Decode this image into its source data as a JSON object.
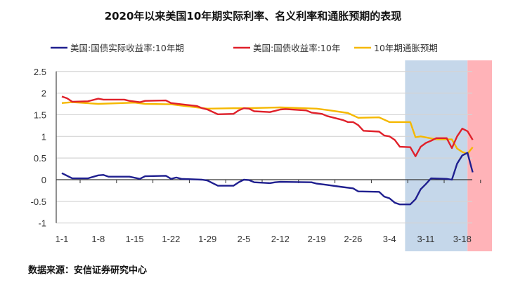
{
  "title": "2020年以来美国10年期实际利率、名义利率和通胀预期的表现",
  "source": "数据来源：安信证券研究中心",
  "chart_data": {
    "type": "line",
    "title": "2020年以来美国10年期实际利率、名义利率和通胀预期的表现",
    "ylim": [
      -1,
      2.5
    ],
    "yticks": [
      -1,
      -0.5,
      0,
      0.5,
      1,
      1.5,
      2,
      2.5
    ],
    "ytick_labels": [
      "-1",
      "-0.5",
      "0",
      "0.5",
      "1",
      "1.5",
      "2",
      "2.5"
    ],
    "xtick_labels": [
      "1-1",
      "1-8",
      "1-15",
      "1-22",
      "1-29",
      "2-5",
      "2-12",
      "2-19",
      "2-26",
      "3-4",
      "3-11",
      "3-18"
    ],
    "grid": "horizontal",
    "legend": "top",
    "shaded_regions": [
      {
        "from": "3-7",
        "to": "3-19",
        "color": "#c5d7ea"
      },
      {
        "from": "3-19",
        "to": "3-24",
        "color": "#ffb3b8"
      }
    ],
    "series": [
      {
        "name": "美国:国债实际收益率:10年期",
        "color": "#1f1f8f",
        "points": [
          [
            "1-1",
            0.15
          ],
          [
            "1-3",
            0.03
          ],
          [
            "1-6",
            0.03
          ],
          [
            "1-8",
            0.1
          ],
          [
            "1-9",
            0.11
          ],
          [
            "1-10",
            0.07
          ],
          [
            "1-14",
            0.07
          ],
          [
            "1-16",
            0.02
          ],
          [
            "1-17",
            0.08
          ],
          [
            "1-21",
            0.09
          ],
          [
            "1-22",
            0.02
          ],
          [
            "1-23",
            0.05
          ],
          [
            "1-24",
            0.02
          ],
          [
            "1-28",
            0.0
          ],
          [
            "1-29",
            -0.02
          ],
          [
            "1-30",
            -0.08
          ],
          [
            "1-31",
            -0.14
          ],
          [
            "2-3",
            -0.14
          ],
          [
            "2-4",
            -0.06
          ],
          [
            "2-5",
            0.0
          ],
          [
            "2-6",
            -0.01
          ],
          [
            "2-7",
            -0.06
          ],
          [
            "2-10",
            -0.08
          ],
          [
            "2-11",
            -0.06
          ],
          [
            "2-12",
            -0.05
          ],
          [
            "2-18",
            -0.06
          ],
          [
            "2-19",
            -0.09
          ],
          [
            "2-21",
            -0.12
          ],
          [
            "2-24",
            -0.17
          ],
          [
            "2-26",
            -0.2
          ],
          [
            "2-27",
            -0.27
          ],
          [
            "3-2",
            -0.28
          ],
          [
            "3-3",
            -0.39
          ],
          [
            "3-4",
            -0.43
          ],
          [
            "3-5",
            -0.53
          ],
          [
            "3-6",
            -0.57
          ],
          [
            "3-8",
            -0.57
          ],
          [
            "3-9",
            -0.45
          ],
          [
            "3-10",
            -0.22
          ],
          [
            "3-11",
            -0.1
          ],
          [
            "3-12",
            0.03
          ],
          [
            "3-15",
            0.02
          ],
          [
            "3-16",
            0.0
          ],
          [
            "3-17",
            0.37
          ],
          [
            "3-18",
            0.56
          ],
          [
            "3-19",
            0.62
          ],
          [
            "3-20",
            0.17
          ]
        ]
      },
      {
        "name": "美国:国债收益率:10年",
        "color": "#e0202a",
        "points": [
          [
            "1-1",
            1.92
          ],
          [
            "1-2",
            1.88
          ],
          [
            "1-3",
            1.8
          ],
          [
            "1-6",
            1.81
          ],
          [
            "1-8",
            1.87
          ],
          [
            "1-9",
            1.85
          ],
          [
            "1-13",
            1.85
          ],
          [
            "1-14",
            1.82
          ],
          [
            "1-16",
            1.79
          ],
          [
            "1-17",
            1.82
          ],
          [
            "1-21",
            1.83
          ],
          [
            "1-22",
            1.77
          ],
          [
            "1-24",
            1.74
          ],
          [
            "1-27",
            1.7
          ],
          [
            "1-28",
            1.65
          ],
          [
            "1-29",
            1.62
          ],
          [
            "1-31",
            1.51
          ],
          [
            "2-3",
            1.52
          ],
          [
            "2-4",
            1.6
          ],
          [
            "2-5",
            1.65
          ],
          [
            "2-6",
            1.64
          ],
          [
            "2-7",
            1.58
          ],
          [
            "2-10",
            1.56
          ],
          [
            "2-11",
            1.59
          ],
          [
            "2-12",
            1.62
          ],
          [
            "2-13",
            1.63
          ],
          [
            "2-17",
            1.6
          ],
          [
            "2-18",
            1.55
          ],
          [
            "2-20",
            1.52
          ],
          [
            "2-21",
            1.47
          ],
          [
            "2-24",
            1.38
          ],
          [
            "2-25",
            1.33
          ],
          [
            "2-26",
            1.33
          ],
          [
            "2-27",
            1.26
          ],
          [
            "2-28",
            1.13
          ],
          [
            "3-2",
            1.11
          ],
          [
            "3-3",
            1.02
          ],
          [
            "3-4",
            1.0
          ],
          [
            "3-5",
            0.92
          ],
          [
            "3-6",
            0.76
          ],
          [
            "3-8",
            0.75
          ],
          [
            "3-9",
            0.54
          ],
          [
            "3-10",
            0.76
          ],
          [
            "3-11",
            0.85
          ],
          [
            "3-12",
            0.9
          ],
          [
            "3-13",
            0.96
          ],
          [
            "3-15",
            0.96
          ],
          [
            "3-16",
            0.73
          ],
          [
            "3-17",
            1.0
          ],
          [
            "3-18",
            1.18
          ],
          [
            "3-19",
            1.12
          ],
          [
            "3-20",
            0.92
          ]
        ]
      },
      {
        "name": "10年期通胀预期",
        "color": "#f5b800",
        "points": [
          [
            "1-1",
            1.77
          ],
          [
            "1-3",
            1.79
          ],
          [
            "1-8",
            1.75
          ],
          [
            "1-15",
            1.78
          ],
          [
            "1-17",
            1.75
          ],
          [
            "1-22",
            1.74
          ],
          [
            "1-27",
            1.67
          ],
          [
            "1-29",
            1.64
          ],
          [
            "2-3",
            1.65
          ],
          [
            "2-5",
            1.65
          ],
          [
            "2-12",
            1.67
          ],
          [
            "2-19",
            1.64
          ],
          [
            "2-21",
            1.61
          ],
          [
            "2-25",
            1.54
          ],
          [
            "2-27",
            1.43
          ],
          [
            "3-2",
            1.44
          ],
          [
            "3-4",
            1.33
          ],
          [
            "3-8",
            1.33
          ],
          [
            "3-9",
            0.98
          ],
          [
            "3-10",
            1.0
          ],
          [
            "3-13",
            0.93
          ],
          [
            "3-15",
            0.93
          ],
          [
            "3-16",
            0.93
          ],
          [
            "3-17",
            0.72
          ],
          [
            "3-18",
            0.64
          ],
          [
            "3-19",
            0.6
          ],
          [
            "3-20",
            0.75
          ]
        ]
      }
    ]
  }
}
